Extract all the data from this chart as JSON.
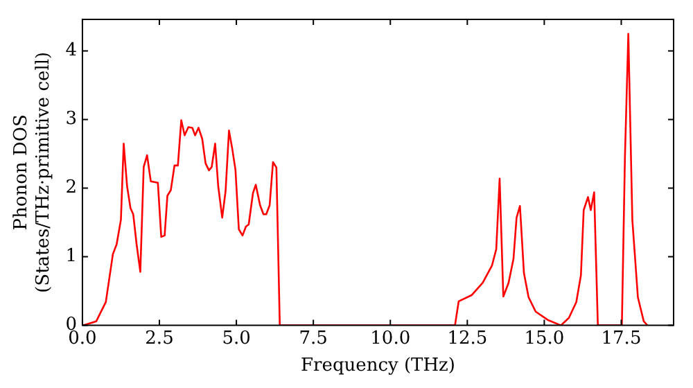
{
  "chart_data": {
    "type": "line",
    "xlabel": "Frequency (THz)",
    "ylabel": "Phonon DOS\n(States/THz·primitive cell)",
    "xlim": [
      0,
      19.2
    ],
    "ylim": [
      0,
      4.46
    ],
    "xticks": [
      {
        "value": 0,
        "label": "0.0"
      },
      {
        "value": 2.5,
        "label": "2.5"
      },
      {
        "value": 5,
        "label": "5.0"
      },
      {
        "value": 7.5,
        "label": "7.5"
      },
      {
        "value": 10,
        "label": "10.0"
      },
      {
        "value": 12.5,
        "label": "12.5"
      },
      {
        "value": 15,
        "label": "15.0"
      },
      {
        "value": 17.5,
        "label": "17.5"
      }
    ],
    "yticks": [
      0,
      1,
      2,
      3,
      4
    ],
    "grid": false,
    "legend": false,
    "marker": "none",
    "line_style": "solid",
    "series": [
      {
        "color": "#ff0000",
        "x": [
          0.03,
          0.45,
          0.76,
          0.99,
          1.11,
          1.25,
          1.34,
          1.45,
          1.56,
          1.65,
          1.76,
          1.88,
          1.99,
          2.1,
          2.22,
          2.45,
          2.56,
          2.67,
          2.76,
          2.87,
          2.99,
          3.1,
          3.21,
          3.32,
          3.44,
          3.57,
          3.66,
          3.77,
          3.89,
          4.0,
          4.11,
          4.2,
          4.31,
          4.41,
          4.54,
          4.65,
          4.76,
          4.86,
          4.97,
          5.08,
          5.2,
          5.31,
          5.4,
          5.54,
          5.63,
          5.77,
          5.88,
          5.97,
          6.08,
          6.19,
          6.3,
          6.41,
          12.1,
          12.22,
          12.64,
          13.0,
          13.3,
          13.44,
          13.55,
          13.67,
          13.84,
          14.0,
          14.1,
          14.21,
          14.34,
          14.49,
          14.72,
          15.11,
          15.54,
          15.8,
          16.04,
          16.19,
          16.28,
          16.42,
          16.51,
          16.62,
          16.74,
          17.52,
          17.62,
          17.73,
          17.86,
          18.04,
          18.23,
          18.35
        ],
        "values": [
          0,
          0.06,
          0.34,
          1.04,
          1.18,
          1.54,
          2.65,
          2.03,
          1.71,
          1.62,
          1.18,
          0.78,
          2.31,
          2.48,
          2.1,
          2.08,
          1.29,
          1.31,
          1.89,
          1.97,
          2.33,
          2.33,
          2.99,
          2.77,
          2.89,
          2.88,
          2.77,
          2.88,
          2.72,
          2.36,
          2.26,
          2.31,
          2.65,
          2.03,
          1.57,
          1.96,
          2.84,
          2.59,
          2.27,
          1.4,
          1.31,
          1.44,
          1.47,
          1.93,
          2.05,
          1.75,
          1.62,
          1.62,
          1.75,
          2.38,
          2.3,
          0,
          0,
          0.35,
          0.44,
          0.62,
          0.87,
          1.11,
          2.14,
          0.42,
          0.62,
          0.97,
          1.57,
          1.74,
          0.76,
          0.41,
          0.2,
          0.08,
          0,
          0.11,
          0.34,
          0.73,
          1.68,
          1.87,
          1.68,
          1.94,
          0,
          0,
          2.46,
          4.25,
          1.54,
          0.41,
          0.06,
          0
        ]
      }
    ]
  }
}
